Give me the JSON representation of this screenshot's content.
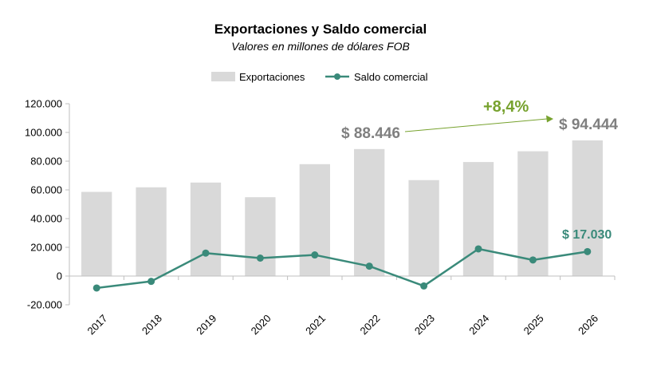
{
  "chart_data": {
    "type": "bar",
    "title": "Exportaciones y Saldo comercial",
    "subtitle": "Valores en millones de dólares FOB",
    "categories": [
      "2017",
      "2018",
      "2019",
      "2020",
      "2021",
      "2022",
      "2023",
      "2024",
      "2025",
      "2026"
    ],
    "series": [
      {
        "name": "Exportaciones",
        "type": "bar",
        "color": "#d9d9d9",
        "values": [
          58600,
          61800,
          65100,
          54900,
          77900,
          88446,
          66800,
          79400,
          86900,
          94444
        ]
      },
      {
        "name": "Saldo comercial",
        "type": "line",
        "color": "#3a8a7a",
        "values": [
          -8300,
          -3700,
          15990,
          12500,
          14700,
          6900,
          -6900,
          18900,
          11200,
          17030
        ]
      }
    ],
    "ylim": [
      -20000,
      120000
    ],
    "yticks": [
      -20000,
      0,
      20000,
      40000,
      60000,
      80000,
      100000,
      120000
    ],
    "ytick_labels": [
      "-20.000",
      "0",
      "20.000",
      "40.000",
      "60.000",
      "80.000",
      "100.000",
      "120.000"
    ],
    "legend_position": "top-center",
    "grid": false,
    "annotations": {
      "export_2022": "$ 88.446",
      "export_2026": "$ 94.444",
      "growth": "+8,4%",
      "saldo_2026": "$ 17.030"
    }
  },
  "colors": {
    "growth": "#77a22e",
    "export_label": "#7f7f7f",
    "axis": "#bfbfbf"
  }
}
